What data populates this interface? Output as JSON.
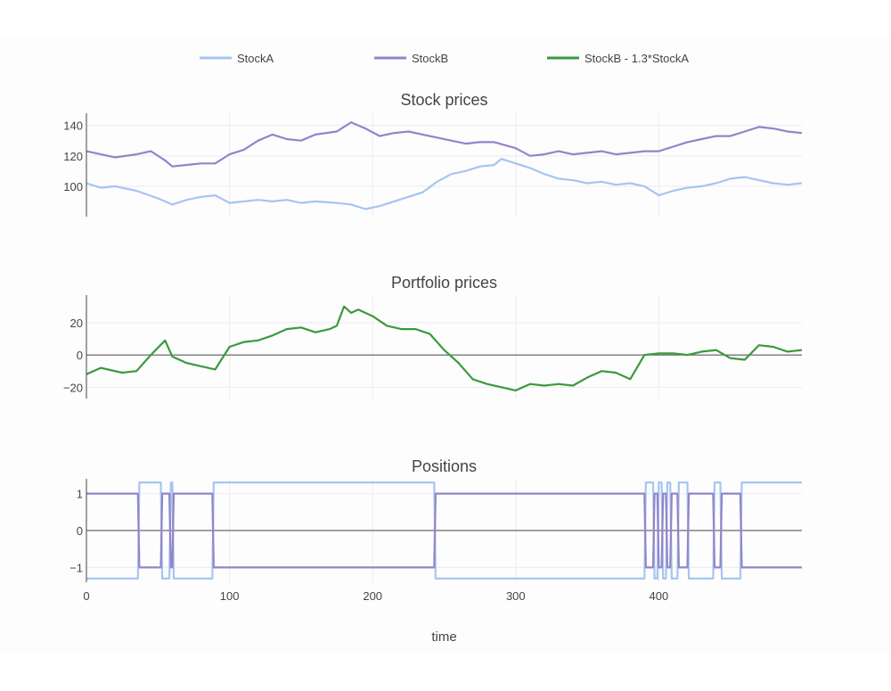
{
  "chart_data": [
    {
      "type": "line",
      "title": "Stock prices",
      "xlim": [
        0,
        500
      ],
      "ylim": [
        80,
        148
      ],
      "yticks": [
        100,
        120,
        140
      ],
      "grid": true,
      "series": [
        {
          "name": "StockA",
          "color": "#a6c5f0",
          "x": [
            0,
            10,
            20,
            35,
            50,
            60,
            70,
            80,
            90,
            100,
            110,
            120,
            130,
            140,
            150,
            160,
            175,
            185,
            195,
            205,
            215,
            225,
            235,
            245,
            255,
            265,
            275,
            285,
            290,
            300,
            310,
            320,
            330,
            340,
            350,
            360,
            370,
            380,
            390,
            400,
            410,
            420,
            430,
            440,
            450,
            460,
            470,
            480,
            490,
            500
          ],
          "y": [
            102,
            99,
            100,
            97,
            92,
            88,
            91,
            93,
            94,
            89,
            90,
            91,
            90,
            91,
            89,
            90,
            89,
            88,
            85,
            87,
            90,
            93,
            96,
            103,
            108,
            110,
            113,
            114,
            118,
            115,
            112,
            108,
            105,
            104,
            102,
            103,
            101,
            102,
            100,
            94,
            97,
            99,
            100,
            102,
            105,
            106,
            104,
            102,
            101,
            102
          ]
        },
        {
          "name": "StockB",
          "color": "#9185c9",
          "x": [
            0,
            10,
            20,
            35,
            45,
            55,
            60,
            70,
            80,
            90,
            100,
            110,
            120,
            130,
            140,
            150,
            160,
            175,
            185,
            195,
            205,
            215,
            225,
            235,
            245,
            255,
            265,
            275,
            285,
            300,
            310,
            320,
            330,
            340,
            350,
            360,
            370,
            380,
            390,
            400,
            410,
            420,
            430,
            440,
            450,
            460,
            470,
            480,
            490,
            500
          ],
          "y": [
            123,
            121,
            119,
            121,
            123,
            117,
            113,
            114,
            115,
            115,
            121,
            124,
            130,
            134,
            131,
            130,
            134,
            136,
            142,
            138,
            133,
            135,
            136,
            134,
            132,
            130,
            128,
            129,
            129,
            125,
            120,
            121,
            123,
            121,
            122,
            123,
            121,
            122,
            123,
            123,
            126,
            129,
            131,
            133,
            133,
            136,
            139,
            138,
            136,
            135
          ]
        }
      ]
    },
    {
      "type": "line",
      "title": "Portfolio prices",
      "xlim": [
        0,
        500
      ],
      "ylim": [
        -27,
        37
      ],
      "yticks": [
        -20,
        0,
        20
      ],
      "grid": true,
      "series": [
        {
          "name": "StockB - 1.3*StockA",
          "color": "#3a9a3c",
          "x": [
            0,
            10,
            25,
            35,
            45,
            55,
            60,
            70,
            80,
            85,
            90,
            100,
            110,
            120,
            130,
            140,
            150,
            160,
            170,
            175,
            180,
            185,
            190,
            200,
            210,
            220,
            230,
            240,
            250,
            260,
            270,
            280,
            290,
            300,
            310,
            320,
            330,
            340,
            350,
            360,
            370,
            380,
            390,
            400,
            410,
            420,
            430,
            440,
            450,
            460,
            470,
            480,
            490,
            500
          ],
          "y": [
            -12,
            -8,
            -11,
            -10,
            0,
            9,
            -1,
            -5,
            -7,
            -8,
            -9,
            5,
            8,
            9,
            12,
            16,
            17,
            14,
            16,
            18,
            30,
            26,
            28,
            24,
            18,
            16,
            16,
            13,
            3,
            -5,
            -15,
            -18,
            -20,
            -22,
            -18,
            -19,
            -18,
            -19,
            -14,
            -10,
            -11,
            -15,
            0,
            1,
            1,
            0,
            2,
            3,
            -2,
            -3,
            6,
            5,
            2,
            3
          ]
        }
      ]
    },
    {
      "type": "line",
      "title": "Positions",
      "xlim": [
        0,
        500
      ],
      "ylim": [
        -1.4,
        1.4
      ],
      "yticks": [
        -1,
        0,
        1
      ],
      "grid": true,
      "xticks": [
        0,
        100,
        200,
        300,
        400
      ],
      "xlabel": "time",
      "series": [
        {
          "name": "StockA",
          "color": "#a6c5f0",
          "x": [
            0,
            36,
            37,
            52,
            53,
            58,
            59,
            60,
            61,
            88,
            89,
            243,
            244,
            390,
            391,
            396,
            397,
            399,
            400,
            402,
            403,
            405,
            406,
            408,
            409,
            413,
            414,
            420,
            421,
            438,
            439,
            443,
            444,
            457,
            458,
            500
          ],
          "y": [
            -1.3,
            -1.3,
            1.3,
            1.3,
            -1.3,
            -1.3,
            1.3,
            1.3,
            -1.3,
            -1.3,
            1.3,
            1.3,
            -1.3,
            -1.3,
            1.3,
            1.3,
            -1.3,
            -1.3,
            1.3,
            1.3,
            -1.3,
            -1.3,
            1.3,
            1.3,
            -1.3,
            -1.3,
            1.3,
            1.3,
            -1.3,
            -1.3,
            1.3,
            1.3,
            -1.3,
            -1.3,
            1.3,
            1.3
          ]
        },
        {
          "name": "StockB",
          "color": "#9185c9",
          "x": [
            0,
            36,
            37,
            52,
            53,
            58,
            59,
            60,
            61,
            88,
            89,
            243,
            244,
            390,
            391,
            396,
            397,
            399,
            400,
            402,
            403,
            405,
            406,
            408,
            409,
            413,
            414,
            420,
            421,
            438,
            439,
            443,
            444,
            457,
            458,
            500
          ],
          "y": [
            1,
            1,
            -1,
            -1,
            1,
            1,
            -1,
            -1,
            1,
            1,
            -1,
            -1,
            1,
            1,
            -1,
            -1,
            1,
            1,
            -1,
            -1,
            1,
            1,
            -1,
            -1,
            1,
            1,
            -1,
            -1,
            1,
            1,
            -1,
            -1,
            1,
            1,
            -1,
            -1
          ]
        }
      ]
    }
  ],
  "legend": {
    "placement": "top",
    "items": [
      {
        "label": "StockA",
        "color": "#a6c5f0"
      },
      {
        "label": "StockB",
        "color": "#9185c9"
      },
      {
        "label": "StockB - 1.3*StockA",
        "color": "#3a9a3c"
      }
    ]
  }
}
